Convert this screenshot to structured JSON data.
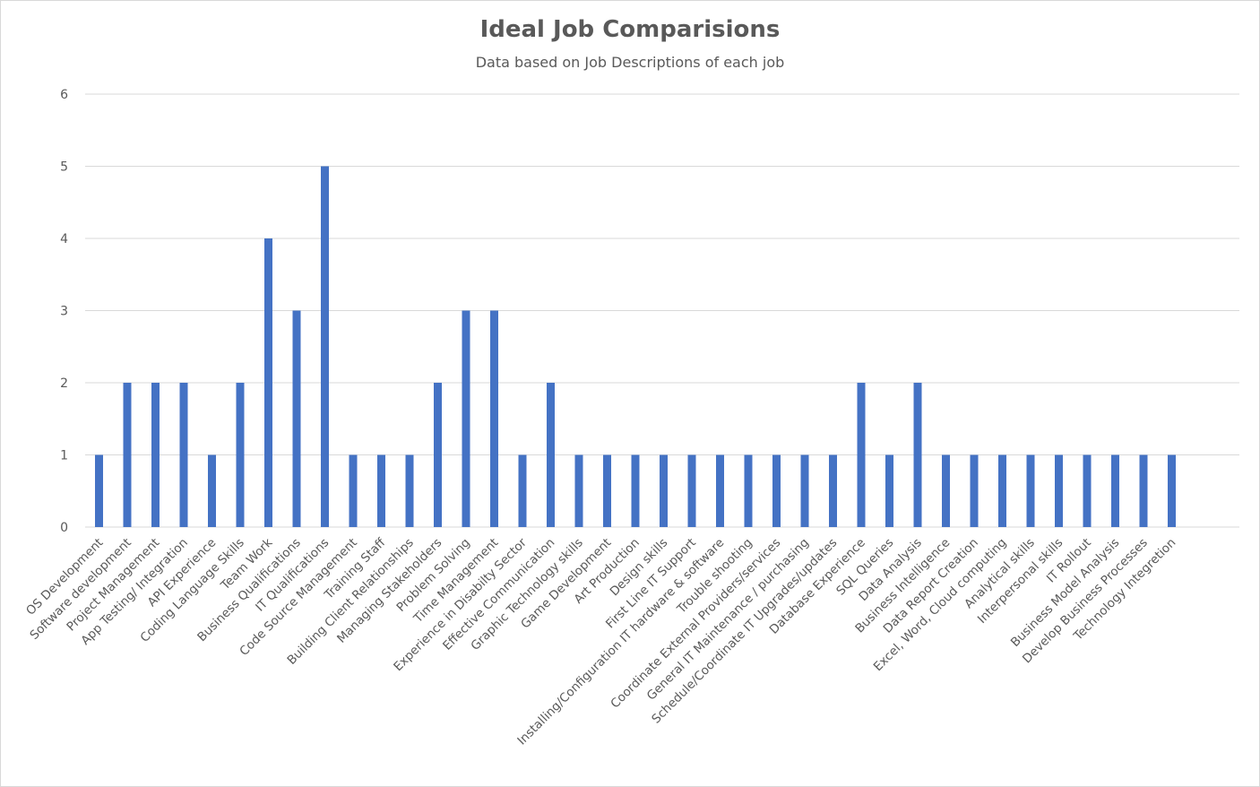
{
  "chart_data": {
    "type": "bar",
    "title": "Ideal Job Comparisions",
    "subtitle": "Data based on Job Descriptions of each job",
    "xlabel": "",
    "ylabel": "",
    "ylim": [
      0,
      6
    ],
    "yticks": [
      0,
      1,
      2,
      3,
      4,
      5,
      6
    ],
    "grid": true,
    "bar_color": "#4472C4",
    "categories": [
      "OS Development",
      "Software development",
      "Project Management",
      "App Testing/ Integration",
      "API Experience",
      "Coding Language Skills",
      "Team Work",
      "Business Qualifications",
      "IT Qualifications",
      "Code Source Management",
      "Training Staff",
      "Building Client Relationships",
      "Managing Stakeholders",
      "Problem Solving",
      "Time Management",
      "Experience in Disabilty Sector",
      "Effective Communication",
      "Graphic Technology skills",
      "Game Development",
      "Art Production",
      "Design skills",
      "First Line IT Support",
      "Installing/Configuration IT hardware & software",
      "Trouble shooting",
      "Coordinate External Providers/services",
      "General IT Maintenance / purchasing",
      "Schedule/Coordinate IT Upgrades/updates",
      "Database Experience",
      "SQL Queries",
      "Data Analysis",
      "Business Intelligence",
      "Data Report Creation",
      "Excel, Word, Cloud computing",
      "Analytical skills",
      "Interpersonal skills",
      "IT Rollout",
      "Business Model Analysis",
      "Develop Business Processes",
      "Technology Integretion"
    ],
    "values": [
      1,
      2,
      2,
      2,
      1,
      2,
      4,
      3,
      5,
      1,
      1,
      1,
      2,
      3,
      3,
      1,
      2,
      1,
      1,
      1,
      1,
      1,
      1,
      1,
      1,
      1,
      1,
      2,
      1,
      2,
      1,
      1,
      1,
      1,
      1,
      1,
      1,
      1,
      1
    ]
  }
}
